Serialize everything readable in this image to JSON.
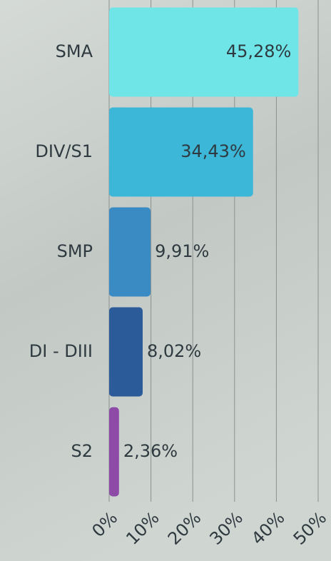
{
  "chart_data": {
    "type": "barh",
    "categories": [
      "SMA",
      "DIV/S1",
      "SMP",
      "DI - DIII",
      "S2"
    ],
    "values": [
      45.28,
      34.43,
      9.91,
      8.02,
      2.36
    ],
    "value_labels": [
      "45,28%",
      "34,43%",
      "9,91%",
      "8,02%",
      "2,36%"
    ],
    "colors": [
      "#6fe5e8",
      "#3db7d8",
      "#3a8bc3",
      "#2c5b99",
      "#8d4aa6"
    ],
    "xlim": [
      0,
      50
    ],
    "xticks": [
      {
        "value": 0,
        "label": "0%"
      },
      {
        "value": 10,
        "label": "10%"
      },
      {
        "value": 20,
        "label": "20%"
      },
      {
        "value": 30,
        "label": "30%"
      },
      {
        "value": 40,
        "label": "40%"
      },
      {
        "value": 50,
        "label": "50%"
      }
    ],
    "grid": true
  }
}
